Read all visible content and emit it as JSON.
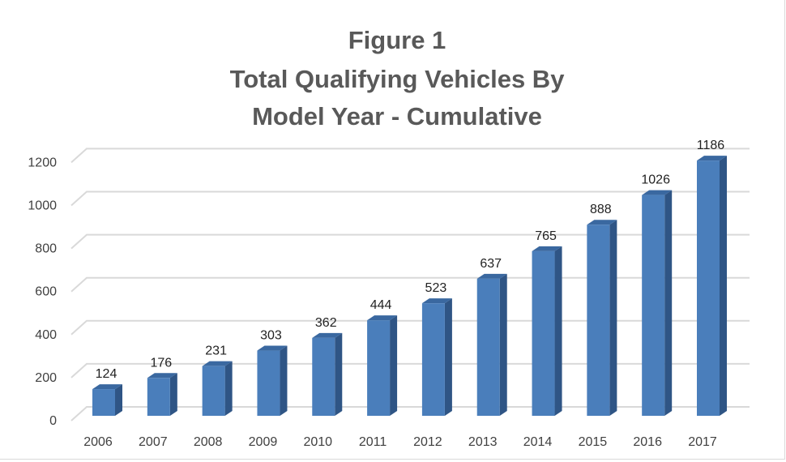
{
  "chart_data": {
    "type": "bar",
    "style": "3d-column",
    "title": [
      "Figure 1",
      "Total Qualifying Vehicles By",
      "Model Year - Cumulative"
    ],
    "xlabel": "",
    "ylabel": "",
    "categories": [
      "2006",
      "2007",
      "2008",
      "2009",
      "2010",
      "2011",
      "2012",
      "2013",
      "2014",
      "2015",
      "2016",
      "2017"
    ],
    "values": [
      124,
      176,
      231,
      303,
      362,
      444,
      523,
      637,
      765,
      888,
      1026,
      1186
    ],
    "ylim": [
      0,
      1200
    ],
    "yticks": [
      0,
      200,
      400,
      600,
      800,
      1000,
      1200
    ],
    "grid": true,
    "data_labels": true,
    "legend": "none",
    "colors": {
      "bar_front": "#4a7ebb",
      "bar_side": "#2f5585",
      "bar_top": "#3a68a0",
      "grid": "#d9d9d9",
      "title": "#595959"
    }
  }
}
